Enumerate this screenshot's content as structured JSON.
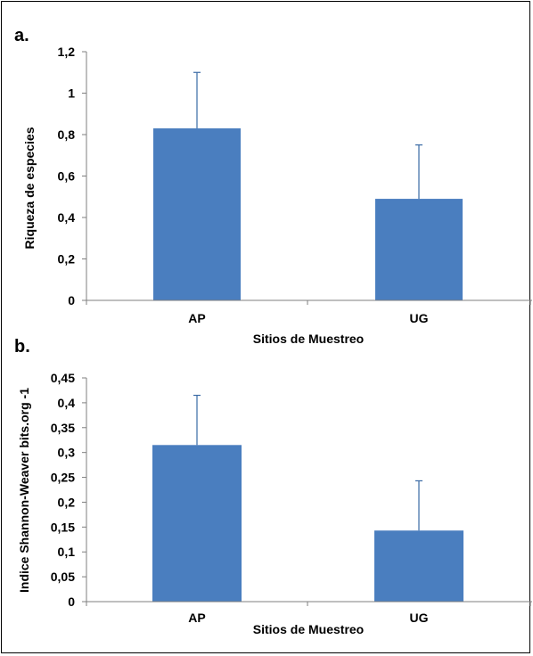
{
  "chart_data": [
    {
      "type": "bar",
      "panel_label": "a.",
      "categories": [
        "AP",
        "UG"
      ],
      "values": [
        0.83,
        0.49
      ],
      "error_upper": [
        1.1,
        0.75
      ],
      "ylim": [
        0,
        1.2
      ],
      "yticks": [
        0,
        0.2,
        0.4,
        0.6,
        0.8,
        1,
        1.2
      ],
      "ytick_labels": [
        "0",
        "0,2",
        "0,4",
        "0,6",
        "0,8",
        "1",
        "1,2"
      ],
      "xlabel": "Sitios de Muestreo",
      "ylabel": "Riqueza de especies",
      "bar_color": "#4a7ebf",
      "grid": false,
      "legend": "none"
    },
    {
      "type": "bar",
      "panel_label": "b.",
      "categories": [
        "AP",
        "UG"
      ],
      "values": [
        0.315,
        0.143
      ],
      "error_upper": [
        0.415,
        0.243
      ],
      "ylim": [
        0,
        0.45
      ],
      "yticks": [
        0,
        0.05,
        0.1,
        0.15,
        0.2,
        0.25,
        0.3,
        0.35,
        0.4,
        0.45
      ],
      "ytick_labels": [
        "0",
        "0,05",
        "0,1",
        "0,15",
        "0,2",
        "0,25",
        "0,3",
        "0,35",
        "0,4",
        "0,45"
      ],
      "xlabel": "Sitios de Muestreo",
      "ylabel": "Indice Shannon-Weaver bits.org -1",
      "bar_color": "#4a7ebf",
      "grid": false,
      "legend": "none"
    }
  ]
}
